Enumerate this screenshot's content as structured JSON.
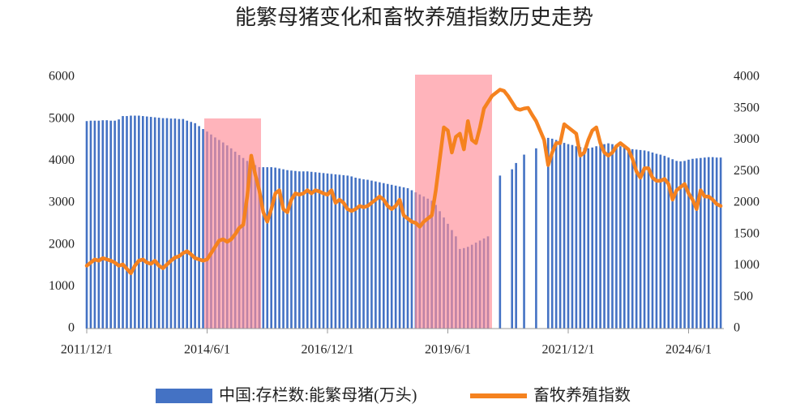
{
  "chart_data": {
    "type": "bar-line",
    "title": "能繁母猪变化和畜牧养殖指数历史走势",
    "categories": [
      "2011/12/1",
      null,
      null,
      null,
      null,
      null,
      null,
      null,
      null,
      null,
      null,
      null,
      null,
      null,
      null,
      null,
      null,
      null,
      null,
      null,
      null,
      null,
      null,
      null,
      null,
      null,
      null,
      null,
      null,
      null,
      "2014/6/1",
      null,
      null,
      null,
      null,
      null,
      null,
      null,
      null,
      null,
      null,
      null,
      null,
      null,
      null,
      null,
      null,
      null,
      null,
      null,
      null,
      null,
      null,
      null,
      null,
      null,
      null,
      null,
      null,
      null,
      "2016/12/1",
      null,
      null,
      null,
      null,
      null,
      null,
      null,
      null,
      null,
      null,
      null,
      null,
      null,
      null,
      null,
      null,
      null,
      null,
      null,
      null,
      null,
      null,
      null,
      null,
      null,
      null,
      null,
      null,
      null,
      "2019/6/1",
      null,
      null,
      null,
      null,
      null,
      null,
      null,
      null,
      null,
      null,
      null,
      null,
      null,
      null,
      null,
      null,
      null,
      null,
      null,
      null,
      null,
      null,
      null,
      null,
      null,
      null,
      null,
      null,
      null,
      "2021/12/1",
      null,
      null,
      null,
      null,
      null,
      null,
      null,
      null,
      null,
      null,
      null,
      null,
      null,
      null,
      null,
      null,
      null,
      null,
      null,
      null,
      null,
      null,
      null,
      null,
      null,
      null,
      null,
      null,
      null,
      "2024/6/1",
      null,
      null,
      null,
      null,
      null,
      null,
      null,
      null
    ],
    "series": [
      {
        "name": "中国:存栏数:能繁母猪(万头)",
        "type": "bar",
        "axis": "y",
        "color": "#4472c4",
        "values": [
          4950,
          4960,
          4960,
          4960,
          4970,
          4970,
          4960,
          4960,
          4990,
          5070,
          5070,
          5080,
          5080,
          5080,
          5070,
          5060,
          5050,
          5040,
          5030,
          5020,
          5020,
          5010,
          5010,
          5000,
          5000,
          4960,
          4930,
          4900,
          4830,
          4760,
          4700,
          4630,
          4560,
          4500,
          4440,
          4370,
          4300,
          4220,
          4140,
          4070,
          4000,
          3950,
          3900,
          3850,
          3850,
          3850,
          3850,
          3840,
          3820,
          3800,
          3780,
          3770,
          3760,
          3750,
          3750,
          3750,
          3740,
          3730,
          3720,
          3710,
          3700,
          3690,
          3680,
          3670,
          3660,
          3650,
          3630,
          3600,
          3580,
          3560,
          3550,
          3530,
          3510,
          3490,
          3470,
          3450,
          3430,
          3410,
          3390,
          3370,
          3350,
          3300,
          3250,
          3200,
          3150,
          3100,
          3050,
          2950,
          2800,
          2650,
          2500,
          2350,
          2200,
          1900,
          1920,
          1950,
          2000,
          2050,
          2100,
          2150,
          2200,
          null,
          null,
          3650,
          null,
          null,
          3800,
          3950,
          null,
          4150,
          null,
          null,
          4300,
          null,
          null,
          4550,
          4530,
          4500,
          4470,
          4430,
          4400,
          4380,
          4350,
          4330,
          4300,
          4300,
          4320,
          4350,
          4380,
          4400,
          4420,
          4400,
          4380,
          4350,
          4320,
          4300,
          4280,
          4270,
          4260,
          4250,
          4230,
          4200,
          4170,
          4150,
          4120,
          4080,
          4040,
          4000,
          3990,
          4000,
          4030,
          4050,
          4060,
          4070,
          4080,
          4090,
          4090,
          4080,
          4080
        ]
      },
      {
        "name": "畜牧养殖指数",
        "type": "line",
        "axis": "y2",
        "color": "#f5821f",
        "values": [
          1000,
          1050,
          1100,
          1080,
          1120,
          1100,
          1080,
          1050,
          1000,
          1020,
          950,
          880,
          1000,
          1080,
          1100,
          1050,
          1030,
          1080,
          1000,
          960,
          1020,
          1080,
          1130,
          1150,
          1200,
          1230,
          1180,
          1120,
          1100,
          1080,
          1100,
          1200,
          1300,
          1400,
          1420,
          1380,
          1420,
          1500,
          1600,
          1650,
          2100,
          2750,
          2450,
          2200,
          1850,
          1700,
          1900,
          2150,
          2200,
          1900,
          1850,
          2050,
          2150,
          2130,
          2150,
          2200,
          2150,
          2200,
          2180,
          2150,
          2130,
          2200,
          2000,
          2050,
          2000,
          1900,
          1870,
          1900,
          1950,
          1930,
          1950,
          2000,
          2050,
          2100,
          2050,
          1950,
          1900,
          1950,
          2050,
          1800,
          1750,
          1700,
          1680,
          1620,
          1700,
          1750,
          1800,
          2200,
          2700,
          3200,
          3150,
          2800,
          3050,
          3100,
          2850,
          3300,
          3000,
          2950,
          3200,
          3500,
          3600,
          3700,
          3750,
          3800,
          3780,
          3700,
          3600,
          3500,
          3480,
          3500,
          3510,
          3400,
          3300,
          3150,
          3000,
          2600,
          2800,
          2950,
          2950,
          3250,
          3200,
          3150,
          3100,
          2750,
          2800,
          3000,
          3150,
          3200,
          2950,
          2800,
          2750,
          2800,
          2900,
          2950,
          2900,
          2850,
          2700,
          2500,
          2400,
          2550,
          2550,
          2400,
          2350,
          2350,
          2380,
          2300,
          2050,
          2200,
          2250,
          2300,
          2150,
          2050,
          1900,
          2200,
          2100,
          2100,
          2050,
          1980,
          1950
        ]
      }
    ],
    "ylim": [
      0,
      6000
    ],
    "yticks": [
      0,
      1000,
      2000,
      3000,
      4000,
      5000,
      6000
    ],
    "y2lim": [
      0,
      4000
    ],
    "y2ticks": [
      0,
      500,
      1000,
      1500,
      2000,
      2500,
      3000,
      3500,
      4000
    ],
    "legend": "bottom"
  }
}
